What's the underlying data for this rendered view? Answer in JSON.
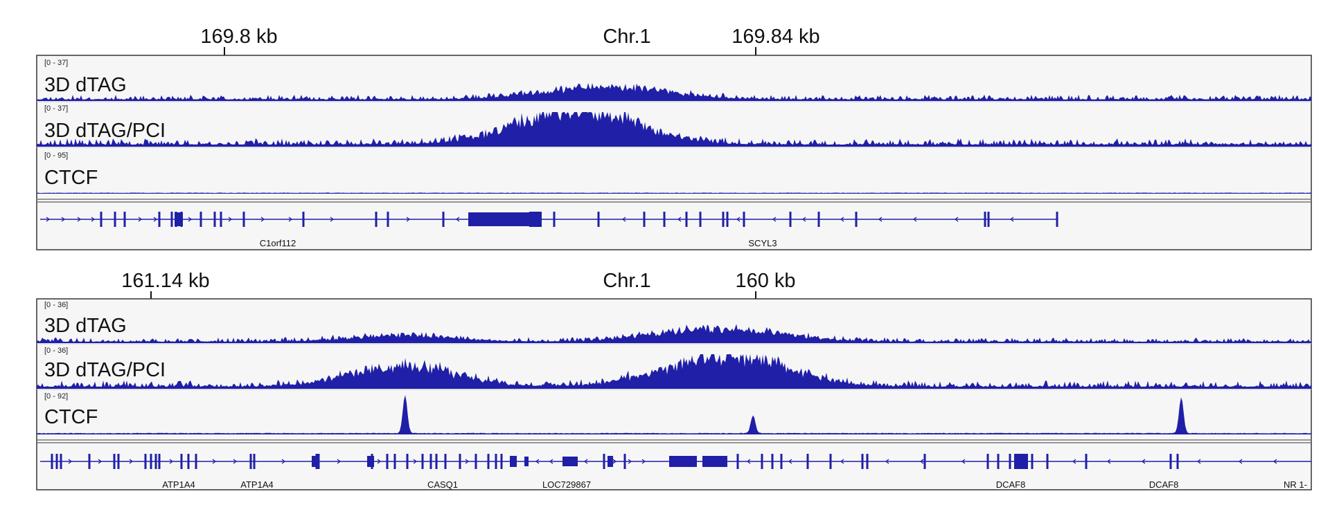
{
  "panels": [
    {
      "chrom": "Chr.1",
      "ruler_ticks": [
        {
          "label": "169.8 kb"
        },
        {
          "label": "169.84 kb"
        }
      ],
      "tracks": [
        {
          "range": "[0 - 37]",
          "name": "3D dTAG"
        },
        {
          "range": "[0 - 37]",
          "name": "3D dTAG/PCI"
        },
        {
          "range": "[0 - 95]",
          "name": "CTCF"
        }
      ],
      "genes": [
        "C1orf112",
        "SCYL3"
      ]
    },
    {
      "chrom": "Chr.1",
      "ruler_ticks": [
        {
          "label": "161.14 kb"
        },
        {
          "label": "160 kb"
        }
      ],
      "tracks": [
        {
          "range": "[0 - 36]",
          "name": "3D dTAG"
        },
        {
          "range": "[0 - 36]",
          "name": "3D dTAG/PCI"
        },
        {
          "range": "[0 - 92]",
          "name": "CTCF"
        }
      ],
      "genes": [
        "ATP1A4",
        "ATP1A4",
        "CASQ1",
        "LOC729867",
        "DCAF8",
        "DCAF8",
        "NR 1-"
      ]
    }
  ],
  "colors": {
    "signal": "#1f1fa8",
    "frame": "#333333",
    "panel_bg": "#f6f6f6"
  },
  "chart_data": {
    "type": "area",
    "panels": [
      {
        "chrom": "Chr.1",
        "x_ticks": [
          "169.8 kb",
          "169.84 kb"
        ],
        "series": [
          {
            "name": "3D dTAG",
            "ylim": [
              0,
              37
            ],
            "peaks": [
              {
                "pos": 0.42,
                "height": 0.35
              },
              {
                "pos": 0.47,
                "height": 0.4
              }
            ]
          },
          {
            "name": "3D dTAG/PCI",
            "ylim": [
              0,
              37
            ],
            "peaks": [
              {
                "pos": 0.4,
                "height": 0.8
              },
              {
                "pos": 0.45,
                "height": 0.75
              }
            ]
          },
          {
            "name": "CTCF",
            "ylim": [
              0,
              95
            ],
            "peaks": []
          }
        ],
        "genes": [
          "C1orf112",
          "SCYL3"
        ]
      },
      {
        "chrom": "Chr.1",
        "x_ticks": [
          "161.14 kb",
          "160 kb"
        ],
        "series": [
          {
            "name": "3D dTAG",
            "ylim": [
              0,
              36
            ],
            "peaks": [
              {
                "pos": 0.287,
                "height": 0.35
              },
              {
                "pos": 0.51,
                "height": 0.45
              },
              {
                "pos": 0.562,
                "height": 0.45
              }
            ]
          },
          {
            "name": "3D dTAG/PCI",
            "ylim": [
              0,
              36
            ],
            "peaks": [
              {
                "pos": 0.287,
                "height": 0.8
              },
              {
                "pos": 0.51,
                "height": 0.55
              },
              {
                "pos": 0.562,
                "height": 0.85
              }
            ]
          },
          {
            "name": "CTCF",
            "ylim": [
              0,
              92
            ],
            "peaks": [
              {
                "pos": 0.289,
                "height": 0.95
              },
              {
                "pos": 0.562,
                "height": 0.45
              },
              {
                "pos": 0.898,
                "height": 0.9
              }
            ]
          }
        ],
        "genes": [
          "ATP1A4",
          "ATP1A4",
          "CASQ1",
          "LOC729867",
          "DCAF8",
          "DCAF8",
          "NR 1-"
        ]
      }
    ]
  }
}
